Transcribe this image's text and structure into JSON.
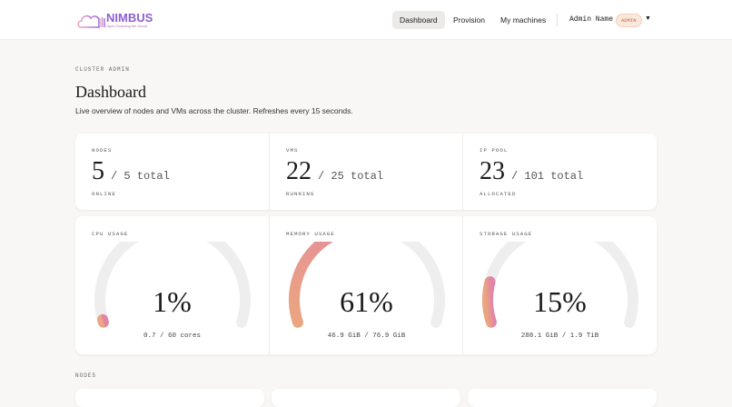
{
  "brand": {
    "name": "NIMBUS",
    "tagline": "Open Sourcing the Cloud"
  },
  "nav": [
    {
      "label": "Dashboard",
      "active": true
    },
    {
      "label": "Provision"
    },
    {
      "label": "My machines"
    }
  ],
  "user": {
    "name": "Admin Name",
    "role": "ADMIN"
  },
  "page": {
    "eyebrow": "CLUSTER ADMIN",
    "title": "Dashboard",
    "subtitle": "Live overview of nodes and VMs across the cluster. Refreshes every 15 seconds."
  },
  "stats": [
    {
      "label": "NODES",
      "value": "5",
      "total": "/ 5 total",
      "status": "ONLINE"
    },
    {
      "label": "VMS",
      "value": "22",
      "total": "/ 25 total",
      "status": "RUNNING"
    },
    {
      "label": "IP POOL",
      "value": "23",
      "total": "/ 101 total",
      "status": "ALLOCATED"
    }
  ],
  "usage": [
    {
      "label": "CPU USAGE",
      "percent": "1%",
      "fraction": 0.01,
      "detail": "0.7 / 60 cores"
    },
    {
      "label": "MEMORY USAGE",
      "percent": "61%",
      "fraction": 0.61,
      "detail": "46.9 GiB / 76.9 GiB"
    },
    {
      "label": "STORAGE USAGE",
      "percent": "15%",
      "fraction": 0.15,
      "detail": "288.1 GiB / 1.9 TiB"
    }
  ],
  "nodes_heading": "NODES",
  "colors": {
    "gauge_start": "#eba57f",
    "gauge_end": "#e184a8",
    "track": "#eeeeee"
  }
}
